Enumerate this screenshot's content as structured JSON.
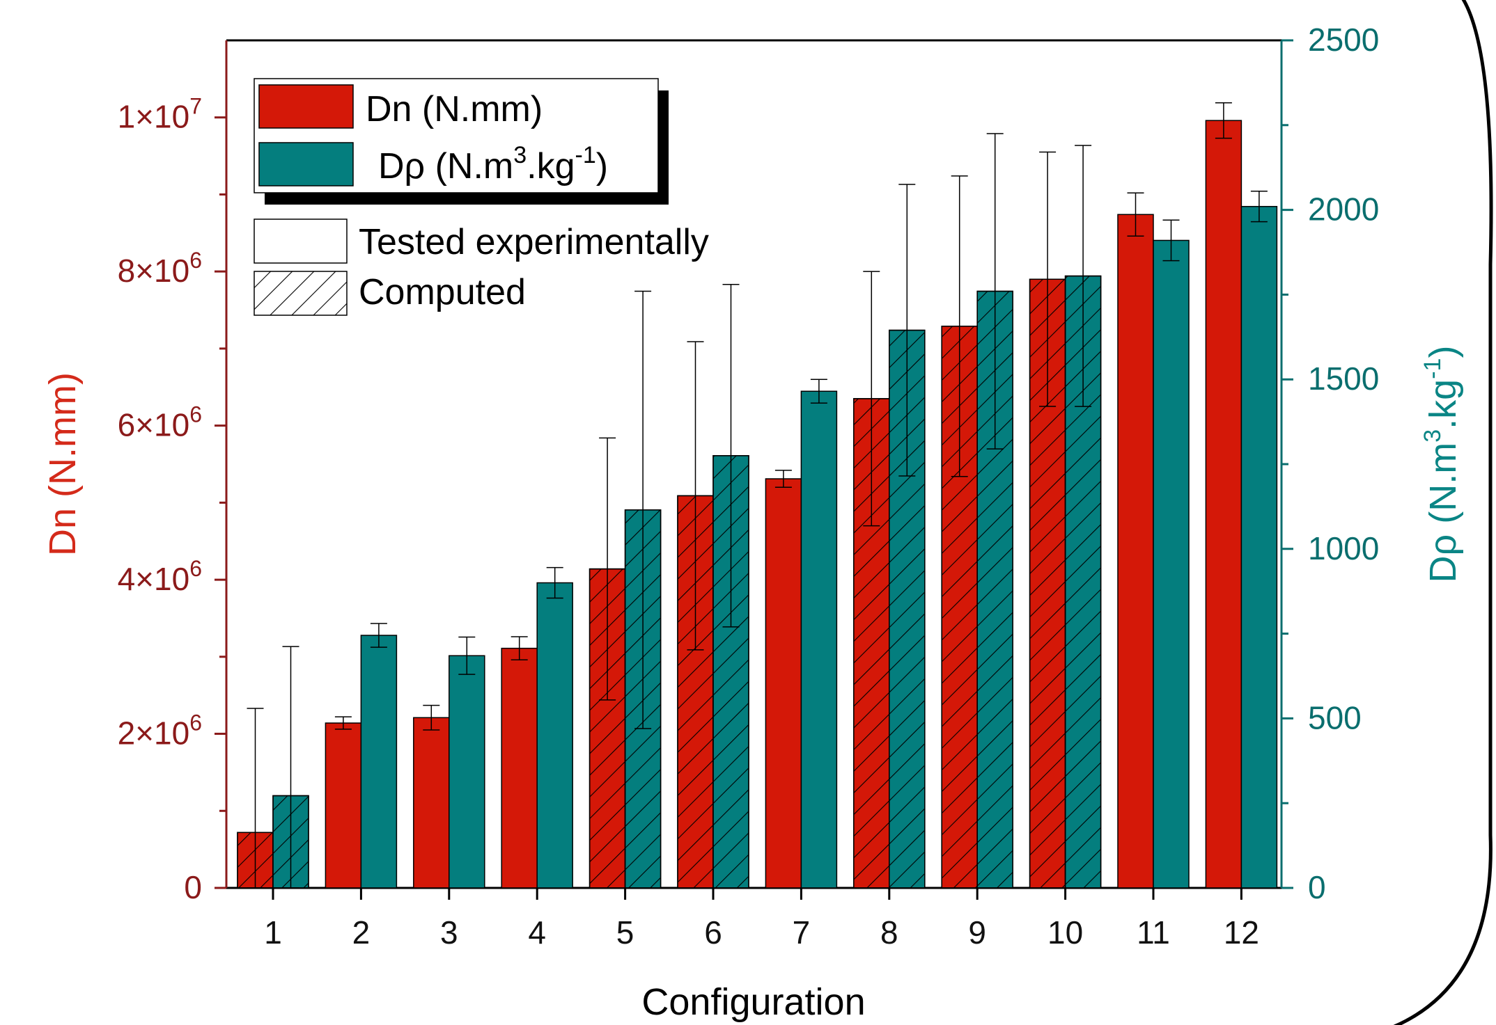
{
  "chart_data": {
    "type": "bar",
    "xlabel": "Configuration",
    "categories": [
      "1",
      "2",
      "3",
      "4",
      "5",
      "6",
      "7",
      "8",
      "9",
      "10",
      "11",
      "12"
    ],
    "y_left": {
      "label": "Dn (N.mm)",
      "range": [
        0,
        11000000
      ],
      "ticks": [
        0,
        2000000,
        4000000,
        6000000,
        8000000,
        10000000
      ],
      "tick_labels": [
        "0",
        "2×10",
        "4×10",
        "6×10",
        "8×10",
        "1×10"
      ],
      "tick_exponents": [
        "",
        "6",
        "6",
        "6",
        "6",
        "7"
      ],
      "color": "#8b1a1a"
    },
    "y_right": {
      "label": "Dρ (N.m",
      "label_sup1": "3",
      "label_mid": ".kg",
      "label_sup2": "-1",
      "label_end": ")",
      "range": [
        0,
        2500
      ],
      "ticks": [
        0,
        500,
        1000,
        1500,
        2000,
        2500
      ],
      "tick_labels": [
        "0",
        "500",
        "1000",
        "1500",
        "2000",
        "2500"
      ],
      "color": "#0a6e6e"
    },
    "series": [
      {
        "name": "Dn (N.mm)",
        "axis": "left",
        "color": "#d41808",
        "values": [
          720000,
          2140000,
          2210000,
          3110000,
          4140000,
          5090000,
          5310000,
          6350000,
          7290000,
          7900000,
          8740000,
          9960000
        ],
        "error": [
          1610000,
          80000,
          160000,
          150000,
          1700000,
          2000000,
          110000,
          1650000,
          1950000,
          1650000,
          280000,
          230000
        ]
      },
      {
        "name": "Dρ (N.m",
        "name_sup1": "3",
        "name_mid": ".kg",
        "name_sup2": "-1",
        "name_end": ")",
        "axis": "right",
        "color": "#047e7e",
        "values": [
          272,
          745,
          685,
          900,
          1115,
          1275,
          1465,
          1645,
          1760,
          1805,
          1910,
          2010
        ],
        "error": [
          440,
          35,
          55,
          45,
          645,
          505,
          35,
          430,
          465,
          385,
          60,
          45
        ]
      }
    ],
    "computed_configurations": [
      "1",
      "5",
      "6",
      "8",
      "9",
      "10"
    ],
    "legend": {
      "position": "top-left",
      "entries": [
        {
          "label": "Dn (N.mm)"
        },
        {
          "label": "Dρ (N.m",
          "sup1": "3",
          "mid": ".kg",
          "sup2": "-1",
          "end": ")"
        },
        {
          "label": "Tested experimentally"
        },
        {
          "label": "Computed"
        }
      ]
    },
    "grid": false
  }
}
